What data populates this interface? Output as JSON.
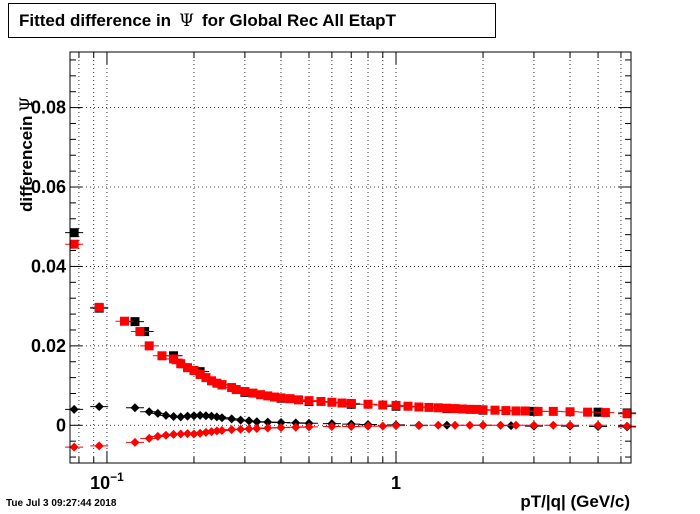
{
  "title": {
    "prefix": "Fitted difference in",
    "symbol": "Ψ",
    "suffix": "for Global Rec All EtapT"
  },
  "ylabel": {
    "text": "differencein",
    "symbol": "Ψ"
  },
  "xlabel": "pT/|q| (GeV/c)",
  "timestamp": "Tue Jul  3 09:27:44 2018",
  "chart_data": {
    "type": "scatter",
    "x_scale": "log",
    "xlim": [
      0.0745,
      6.5
    ],
    "ylim": [
      -0.0095,
      0.094
    ],
    "xlabel": "pT/|q| (GeV/c)",
    "ylabel": "differencein Ψ",
    "y_ticks": [
      {
        "v": 0,
        "label": "0"
      },
      {
        "v": 0.02,
        "label": "0.02"
      },
      {
        "v": 0.04,
        "label": "0.04"
      },
      {
        "v": 0.06,
        "label": "0.06"
      },
      {
        "v": 0.08,
        "label": "0.08"
      }
    ],
    "x_tick_labels": [
      {
        "v": 0.1,
        "base": "10",
        "exp": "−1"
      },
      {
        "v": 1,
        "base": "1",
        "exp": ""
      }
    ],
    "grid": true,
    "series": [
      {
        "marker": "square",
        "color": "#000000",
        "points": [
          [
            0.077,
            0.0485
          ],
          [
            0.094,
            0.0295
          ],
          [
            0.125,
            0.0261
          ],
          [
            0.135,
            0.0236
          ],
          [
            0.17,
            0.0175
          ],
          [
            0.21,
            0.0135
          ],
          [
            0.25,
            0.0102
          ],
          [
            0.3,
            0.0083
          ],
          [
            0.4,
            0.0068
          ],
          [
            0.5,
            0.006
          ],
          [
            0.7,
            0.0053
          ],
          [
            1.0,
            0.0048
          ],
          [
            1.5,
            0.0042
          ],
          [
            2.0,
            0.0038
          ],
          [
            3.0,
            0.0035
          ],
          [
            5.0,
            0.0033
          ],
          [
            6.3,
            0.0031
          ]
        ]
      },
      {
        "marker": "square",
        "color": "#ff0000",
        "points": [
          [
            0.077,
            0.0456
          ],
          [
            0.094,
            0.0297
          ],
          [
            0.115,
            0.0262
          ],
          [
            0.13,
            0.0236
          ],
          [
            0.14,
            0.02
          ],
          [
            0.155,
            0.0175
          ],
          [
            0.17,
            0.0167
          ],
          [
            0.18,
            0.0155
          ],
          [
            0.19,
            0.0145
          ],
          [
            0.2,
            0.0138
          ],
          [
            0.21,
            0.0128
          ],
          [
            0.22,
            0.012
          ],
          [
            0.23,
            0.0112
          ],
          [
            0.24,
            0.0106
          ],
          [
            0.25,
            0.0102
          ],
          [
            0.27,
            0.0095
          ],
          [
            0.28,
            0.009
          ],
          [
            0.3,
            0.0085
          ],
          [
            0.32,
            0.0081
          ],
          [
            0.34,
            0.0077
          ],
          [
            0.36,
            0.0074
          ],
          [
            0.38,
            0.0071
          ],
          [
            0.4,
            0.0069
          ],
          [
            0.43,
            0.0067
          ],
          [
            0.46,
            0.0064
          ],
          [
            0.5,
            0.0062
          ],
          [
            0.55,
            0.006
          ],
          [
            0.6,
            0.0058
          ],
          [
            0.65,
            0.0056
          ],
          [
            0.7,
            0.0055
          ],
          [
            0.8,
            0.0053
          ],
          [
            0.9,
            0.0051
          ],
          [
            1.0,
            0.005
          ],
          [
            1.1,
            0.0048
          ],
          [
            1.2,
            0.0046
          ],
          [
            1.3,
            0.0045
          ],
          [
            1.4,
            0.0044
          ],
          [
            1.5,
            0.0043
          ],
          [
            1.6,
            0.0042
          ],
          [
            1.7,
            0.0041
          ],
          [
            1.8,
            0.004
          ],
          [
            1.9,
            0.004
          ],
          [
            2.0,
            0.0039
          ],
          [
            2.2,
            0.0038
          ],
          [
            2.4,
            0.0037
          ],
          [
            2.6,
            0.0036
          ],
          [
            2.8,
            0.0036
          ],
          [
            3.1,
            0.0035
          ],
          [
            3.5,
            0.0035
          ],
          [
            4.0,
            0.0034
          ],
          [
            4.6,
            0.0033
          ],
          [
            5.3,
            0.0032
          ],
          [
            6.3,
            0.0029
          ]
        ]
      },
      {
        "marker": "diamond",
        "color": "#000000",
        "points": [
          [
            0.077,
            0.004
          ],
          [
            0.094,
            0.0047
          ],
          [
            0.125,
            0.0044
          ],
          [
            0.14,
            0.0034
          ],
          [
            0.15,
            0.003
          ],
          [
            0.16,
            0.0025
          ],
          [
            0.17,
            0.0022
          ],
          [
            0.18,
            0.0021
          ],
          [
            0.19,
            0.0023
          ],
          [
            0.2,
            0.0024
          ],
          [
            0.21,
            0.0025
          ],
          [
            0.22,
            0.0024
          ],
          [
            0.23,
            0.0023
          ],
          [
            0.24,
            0.0021
          ],
          [
            0.25,
            0.0019
          ],
          [
            0.27,
            0.0016
          ],
          [
            0.29,
            0.0013
          ],
          [
            0.31,
            0.0011
          ],
          [
            0.33,
            0.0009
          ],
          [
            0.36,
            0.0008
          ],
          [
            0.4,
            0.0007
          ],
          [
            0.45,
            0.0006
          ],
          [
            0.5,
            0.0005
          ],
          [
            0.6,
            0.0004
          ],
          [
            0.7,
            0.0003
          ],
          [
            0.8,
            0.0002
          ],
          [
            1.0,
            0.0001
          ],
          [
            1.2,
            0.0
          ],
          [
            1.5,
            0.0
          ],
          [
            2.0,
            0.0
          ],
          [
            2.5,
            -0.0001
          ],
          [
            3.0,
            -0.0002
          ],
          [
            4.0,
            -0.0002
          ],
          [
            5.0,
            -0.0003
          ],
          [
            6.3,
            -0.0004
          ]
        ]
      },
      {
        "marker": "diamond",
        "color": "#ff0000",
        "points": [
          [
            0.077,
            -0.0055
          ],
          [
            0.094,
            -0.0052
          ],
          [
            0.125,
            -0.0043
          ],
          [
            0.14,
            -0.0033
          ],
          [
            0.15,
            -0.0028
          ],
          [
            0.16,
            -0.0025
          ],
          [
            0.17,
            -0.0023
          ],
          [
            0.18,
            -0.0022
          ],
          [
            0.19,
            -0.0021
          ],
          [
            0.2,
            -0.0022
          ],
          [
            0.21,
            -0.002
          ],
          [
            0.22,
            -0.0018
          ],
          [
            0.23,
            -0.0016
          ],
          [
            0.24,
            -0.0014
          ],
          [
            0.25,
            -0.0013
          ],
          [
            0.27,
            -0.0011
          ],
          [
            0.29,
            -0.001
          ],
          [
            0.31,
            -0.0009
          ],
          [
            0.33,
            -0.0008
          ],
          [
            0.36,
            -0.0007
          ],
          [
            0.4,
            -0.0006
          ],
          [
            0.45,
            -0.0005
          ],
          [
            0.5,
            -0.0004
          ],
          [
            0.6,
            -0.0003
          ],
          [
            0.7,
            -0.0003
          ],
          [
            0.8,
            -0.0002
          ],
          [
            0.9,
            -0.0002
          ],
          [
            1.0,
            -0.0001
          ],
          [
            1.2,
            -0.0001
          ],
          [
            1.4,
            0.0
          ],
          [
            1.6,
            0.0
          ],
          [
            1.8,
            0.0
          ],
          [
            2.0,
            0.0
          ],
          [
            2.3,
            0.0
          ],
          [
            2.6,
            0.0
          ],
          [
            3.0,
            0.0
          ],
          [
            3.5,
            0.0
          ],
          [
            4.0,
            0.0
          ],
          [
            5.0,
            0.0
          ],
          [
            6.3,
            -0.0002
          ]
        ]
      }
    ]
  }
}
